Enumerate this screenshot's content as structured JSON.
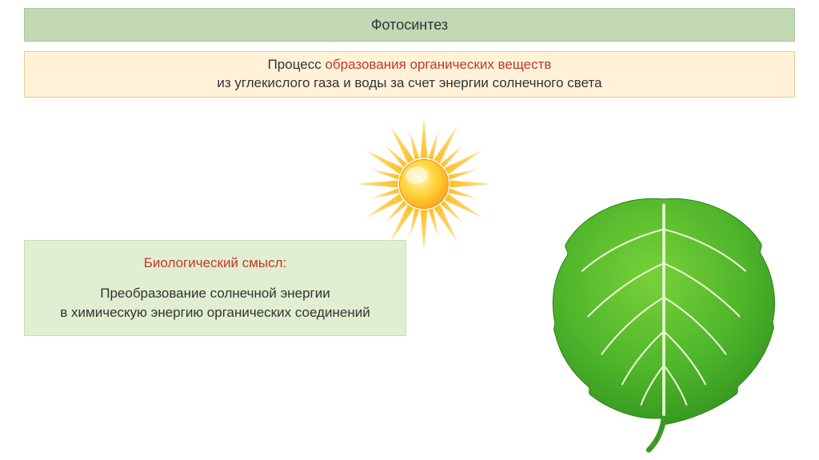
{
  "title": {
    "text": "Фотосинтез",
    "bg": "#c3d8b5",
    "border": "#a9c79b",
    "color": "#333333",
    "fontsize": 18
  },
  "definition": {
    "line1_a": "Процесс ",
    "line1_b": "образования органических веществ",
    "line2": "из углекислого газа и воды за счет энергии солнечного света",
    "bg": "#fff2d8",
    "border": "#e9ca94",
    "color_normal": "#333333",
    "color_highlight": "#c0392b",
    "fontsize": 17
  },
  "biological": {
    "heading": "Биологический смысл:",
    "line1": "Преобразование солнечной энергии",
    "line2": "в химическую энергию органических соединений",
    "bg": "#e1eed1",
    "border": "#c7dfa8",
    "color_heading": "#c0392b",
    "color_body": "#333333",
    "fontsize": 17
  },
  "sun": {
    "core_gradient_inner": "#fff8b8",
    "core_gradient_mid": "#ffd23a",
    "core_gradient_outer": "#f9a61a",
    "ray_color": "#fdbf2e",
    "ray_tip": "#ffe28a"
  },
  "leaf": {
    "fill_light": "#79d13a",
    "fill_mid": "#4fb52b",
    "fill_dark": "#2d8e1c",
    "vein": "#e7f8cf",
    "stem": "#3c9a22"
  }
}
